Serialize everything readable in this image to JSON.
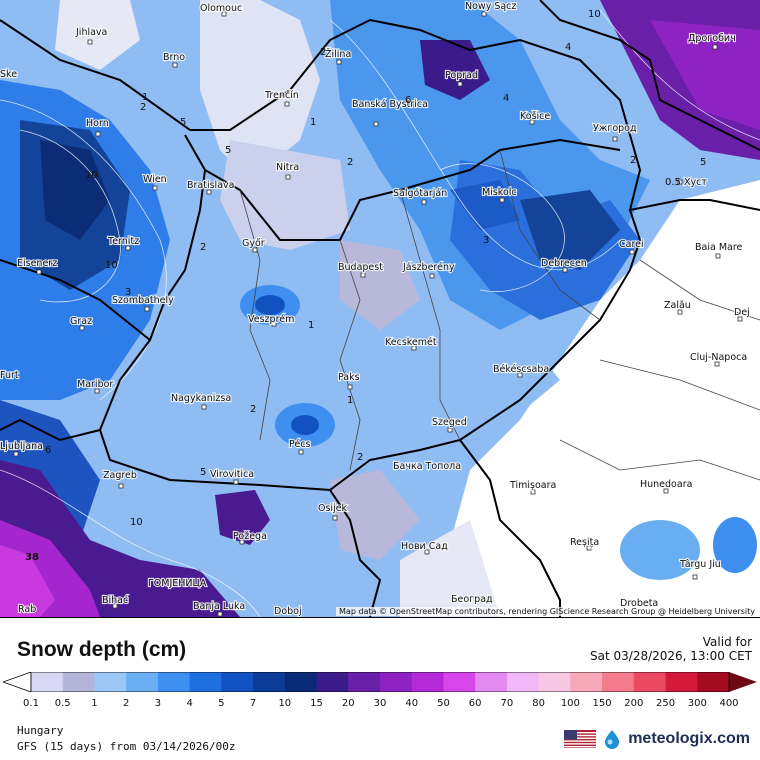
{
  "legend": {
    "title": "Snow depth (cm)",
    "valid_label": "Valid for",
    "valid_time": "Sat 03/28/2026, 13:00 CET",
    "region": "Hungary",
    "model_run": "GFS (15 days) from 03/14/2026/00z",
    "brand": "meteologix.com",
    "flag_icon": "us-flag-icon",
    "ticks": [
      "0.1",
      "0.5",
      "1",
      "2",
      "3",
      "4",
      "5",
      "7",
      "10",
      "15",
      "20",
      "30",
      "40",
      "50",
      "60",
      "70",
      "80",
      "100",
      "150",
      "200",
      "250",
      "300",
      "400"
    ],
    "colors": [
      "#ffffff",
      "#d8d8f4",
      "#b4b4d8",
      "#9bc6f5",
      "#6aaef2",
      "#3f8ff0",
      "#1f6fe0",
      "#1252c0",
      "#0c3b98",
      "#0a2a78",
      "#3b1a8a",
      "#6a1fa8",
      "#8e22c2",
      "#b52ad8",
      "#d746ea",
      "#e488f2",
      "#f0b8f6",
      "#f7c8e4",
      "#f7a8b8",
      "#f27c8c",
      "#ec4a60",
      "#d41a38",
      "#a40a20",
      "#6e0a14"
    ]
  },
  "map": {
    "attribution": "Map data © OpenStreetMap contributors, rendering GIScience Research Group @ Heidelberg University",
    "cities": [
      {
        "name": "Olomouc"
      },
      {
        "name": "Nowy Sącz"
      },
      {
        "name": "Jihlava"
      },
      {
        "name": "Žilina"
      },
      {
        "name": "Дрогобич"
      },
      {
        "name": "Brno"
      },
      {
        "name": "Poprad"
      },
      {
        "name": "Trenčín"
      },
      {
        "name": "Banská Bystrica"
      },
      {
        "name": "Košice"
      },
      {
        "name": "Ужгород"
      },
      {
        "name": "Horn"
      },
      {
        "name": "Nitra"
      },
      {
        "name": "Wien"
      },
      {
        "name": "Bratislava"
      },
      {
        "name": "Miskolc"
      },
      {
        "name": "Salgótarján"
      },
      {
        "name": "Хуст"
      },
      {
        "name": "Ternitz"
      },
      {
        "name": "Győr"
      },
      {
        "name": "Carei"
      },
      {
        "name": "Baia Mare"
      },
      {
        "name": "Eisenerz"
      },
      {
        "name": "Budapest"
      },
      {
        "name": "Jászberény"
      },
      {
        "name": "Debrecen"
      },
      {
        "name": "Szombathely"
      },
      {
        "name": "Zalău"
      },
      {
        "name": "Graz"
      },
      {
        "name": "Veszprém"
      },
      {
        "name": "Dej"
      },
      {
        "name": "Kecskemét"
      },
      {
        "name": "Cluj-Napoca"
      },
      {
        "name": "Maribor"
      },
      {
        "name": "Paks"
      },
      {
        "name": "Békéscsaba"
      },
      {
        "name": "Nagykanizsa"
      },
      {
        "name": "Szeged"
      },
      {
        "name": "Ljubljana"
      },
      {
        "name": "Pécs"
      },
      {
        "name": "Бачка Топола"
      },
      {
        "name": "Zagreb"
      },
      {
        "name": "Virovitica"
      },
      {
        "name": "Timișoara"
      },
      {
        "name": "Hunedoara"
      },
      {
        "name": "Osijek"
      },
      {
        "name": "Požega"
      },
      {
        "name": "Нови Сад"
      },
      {
        "name": "Reșița"
      },
      {
        "name": "Târgu Jiu"
      },
      {
        "name": "ГОМЈЕНИЦА"
      },
      {
        "name": "Bihać"
      },
      {
        "name": "Banja Luka"
      },
      {
        "name": "Doboj"
      },
      {
        "name": "Београд"
      },
      {
        "name": "Drobeta"
      },
      {
        "name": "Rab"
      },
      {
        "name": "Furt"
      },
      {
        "name": "Ske"
      }
    ],
    "contour_labels": [
      "10",
      "1",
      "2",
      "5",
      "6",
      "4",
      "2",
      "1",
      "2",
      "3",
      "1",
      "1",
      "2",
      "10",
      "5",
      "10",
      "6",
      "38",
      "0.5",
      "4",
      "2",
      "2",
      "3",
      "5",
      "10",
      "5",
      "2"
    ]
  }
}
